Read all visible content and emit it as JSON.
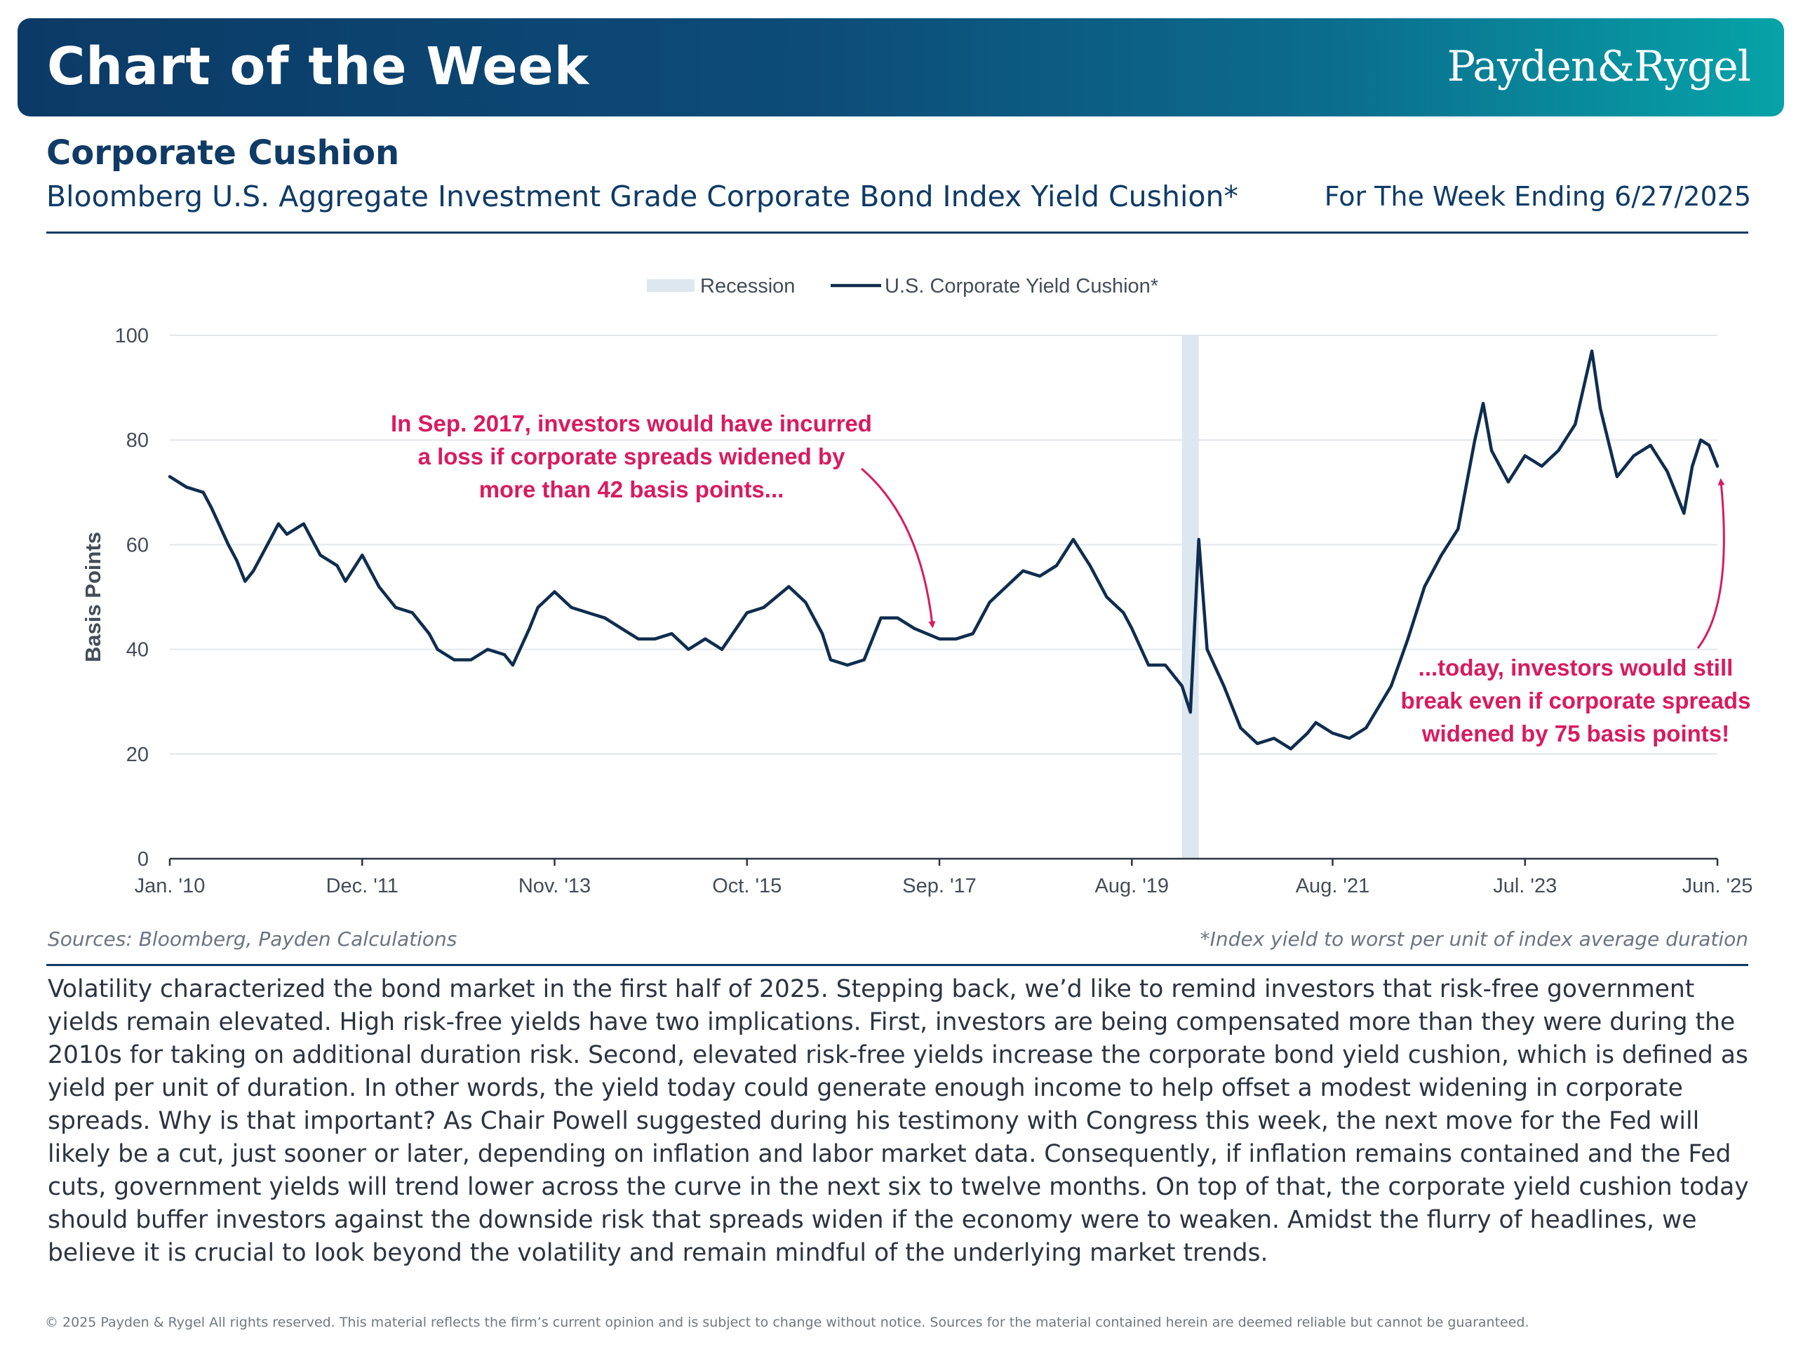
{
  "header": {
    "title": "Chart of the Week",
    "logo": "Payden&Rygel"
  },
  "subheader": {
    "title": "Corporate Cushion",
    "index_name": "Bloomberg U.S. Aggregate Investment Grade Corporate Bond Index Yield Cushion*",
    "week_ending": "For The Week Ending 6/27/2025"
  },
  "chart_data": {
    "type": "line",
    "ylabel": "Basis Points",
    "ylim": [
      0,
      100
    ],
    "yticks": [
      0,
      20,
      40,
      60,
      80,
      100
    ],
    "xlim": [
      "2010-01",
      "2025-06"
    ],
    "xtick_labels": [
      "Jan. '10",
      "Dec. '11",
      "Nov. '13",
      "Oct. '15",
      "Sep. '17",
      "Aug. '19",
      "Aug. '21",
      "Jul. '23",
      "Jun. '25"
    ],
    "xtick_dates": [
      "2010-01",
      "2011-12",
      "2013-11",
      "2015-10",
      "2017-09",
      "2019-08",
      "2021-08",
      "2023-07",
      "2025-06"
    ],
    "grid": "horizontal",
    "legend": {
      "placement": "top-center",
      "items": [
        {
          "label": "Recession",
          "kind": "band",
          "color": "#dde7ef"
        },
        {
          "label": "U.S. Corporate Yield Cushion*",
          "kind": "line",
          "color": "#0f2d4e"
        }
      ]
    },
    "recession": {
      "start": "2020-02",
      "end": "2020-04"
    },
    "series": [
      {
        "name": "U.S. Corporate Yield Cushion*",
        "color": "#0f2d4e",
        "points": [
          [
            "2010-01",
            73
          ],
          [
            "2010-03",
            71
          ],
          [
            "2010-05",
            70
          ],
          [
            "2010-06",
            67
          ],
          [
            "2010-08",
            60
          ],
          [
            "2010-09",
            57
          ],
          [
            "2010-10",
            53
          ],
          [
            "2010-11",
            55
          ],
          [
            "2010-12",
            58
          ],
          [
            "2011-02",
            64
          ],
          [
            "2011-03",
            62
          ],
          [
            "2011-05",
            64
          ],
          [
            "2011-07",
            58
          ],
          [
            "2011-09",
            56
          ],
          [
            "2011-10",
            53
          ],
          [
            "2011-12",
            58
          ],
          [
            "2012-02",
            52
          ],
          [
            "2012-04",
            48
          ],
          [
            "2012-06",
            47
          ],
          [
            "2012-08",
            43
          ],
          [
            "2012-09",
            40
          ],
          [
            "2012-11",
            38
          ],
          [
            "2013-01",
            38
          ],
          [
            "2013-03",
            40
          ],
          [
            "2013-05",
            39
          ],
          [
            "2013-06",
            37
          ],
          [
            "2013-08",
            44
          ],
          [
            "2013-09",
            48
          ],
          [
            "2013-11",
            51
          ],
          [
            "2014-01",
            48
          ],
          [
            "2014-03",
            47
          ],
          [
            "2014-05",
            46
          ],
          [
            "2014-07",
            44
          ],
          [
            "2014-09",
            42
          ],
          [
            "2014-11",
            42
          ],
          [
            "2015-01",
            43
          ],
          [
            "2015-03",
            40
          ],
          [
            "2015-05",
            42
          ],
          [
            "2015-07",
            40
          ],
          [
            "2015-10",
            47
          ],
          [
            "2015-12",
            48
          ],
          [
            "2016-03",
            52
          ],
          [
            "2016-05",
            49
          ],
          [
            "2016-07",
            43
          ],
          [
            "2016-08",
            38
          ],
          [
            "2016-10",
            37
          ],
          [
            "2016-12",
            38
          ],
          [
            "2017-02",
            46
          ],
          [
            "2017-04",
            46
          ],
          [
            "2017-06",
            44
          ],
          [
            "2017-09",
            42
          ],
          [
            "2017-11",
            42
          ],
          [
            "2018-01",
            43
          ],
          [
            "2018-03",
            49
          ],
          [
            "2018-05",
            52
          ],
          [
            "2018-07",
            55
          ],
          [
            "2018-09",
            54
          ],
          [
            "2018-11",
            56
          ],
          [
            "2019-01",
            61
          ],
          [
            "2019-03",
            56
          ],
          [
            "2019-05",
            50
          ],
          [
            "2019-07",
            47
          ],
          [
            "2019-08",
            44
          ],
          [
            "2019-10",
            37
          ],
          [
            "2019-12",
            37
          ],
          [
            "2020-02",
            33
          ],
          [
            "2020-03",
            28
          ],
          [
            "2020-04",
            61
          ],
          [
            "2020-05",
            40
          ],
          [
            "2020-07",
            33
          ],
          [
            "2020-09",
            25
          ],
          [
            "2020-11",
            22
          ],
          [
            "2021-01",
            23
          ],
          [
            "2021-03",
            21
          ],
          [
            "2021-05",
            24
          ],
          [
            "2021-06",
            26
          ],
          [
            "2021-08",
            24
          ],
          [
            "2021-10",
            23
          ],
          [
            "2021-12",
            25
          ],
          [
            "2022-03",
            33
          ],
          [
            "2022-05",
            42
          ],
          [
            "2022-07",
            52
          ],
          [
            "2022-09",
            58
          ],
          [
            "2022-11",
            63
          ],
          [
            "2023-01",
            80
          ],
          [
            "2023-02",
            87
          ],
          [
            "2023-03",
            78
          ],
          [
            "2023-05",
            72
          ],
          [
            "2023-07",
            77
          ],
          [
            "2023-09",
            75
          ],
          [
            "2023-11",
            78
          ],
          [
            "2024-01",
            83
          ],
          [
            "2024-03",
            97
          ],
          [
            "2024-04",
            86
          ],
          [
            "2024-06",
            73
          ],
          [
            "2024-08",
            77
          ],
          [
            "2024-10",
            79
          ],
          [
            "2024-12",
            74
          ],
          [
            "2025-02",
            66
          ],
          [
            "2025-03",
            75
          ],
          [
            "2025-04",
            80
          ],
          [
            "2025-05",
            79
          ],
          [
            "2025-06",
            75
          ]
        ]
      }
    ],
    "annotations": [
      {
        "text": [
          "In Sep. 2017, investors would have incurred",
          "a loss if corporate spreads widened by",
          "more than 42 basis points..."
        ],
        "color": "#d81b60",
        "target": [
          "2017-09",
          42
        ]
      },
      {
        "text": [
          "...today, investors would still",
          "break even if corporate spreads",
          "widened by 75 basis points!"
        ],
        "color": "#d81b60",
        "target": [
          "2025-06",
          75
        ]
      }
    ]
  },
  "footer": {
    "sources": "Sources: Bloomberg, Payden Calculations",
    "note": "*Index yield to worst per unit of index average duration",
    "body": "Volatility characterized the bond market in the first half of 2025. Stepping back, we’d like to remind investors that risk-free government yields remain elevated. High risk-free yields have two implications. First, investors are being compensated more than they were during the 2010s for taking on additional duration risk. Second, elevated risk-free yields increase the corporate bond yield cushion, which is defined as yield per unit of duration. In other words, the yield today could generate enough income to help offset a modest widening in corporate spreads. Why is that important? As Chair Powell suggested during his testimony with Congress this week, the next move for the Fed will likely be a cut, just sooner or later, depending on inflation and labor market data. Consequently, if inflation remains contained and the Fed cuts, government yields will trend lower across the curve in the next six to twelve months. On top of that, the corporate yield cushion today should buffer investors against the downside risk that spreads widen if the economy were to weaken. Amidst the flurry of headlines, we believe it is crucial to look beyond the volatility and remain mindful of the underlying market trends.",
    "copyright": "© 2025 Payden & Rygel All rights reserved. This material reflects the firm’s current opinion and is subject to change without notice. Sources for the material contained herein are deemed reliable but cannot be guaranteed."
  }
}
